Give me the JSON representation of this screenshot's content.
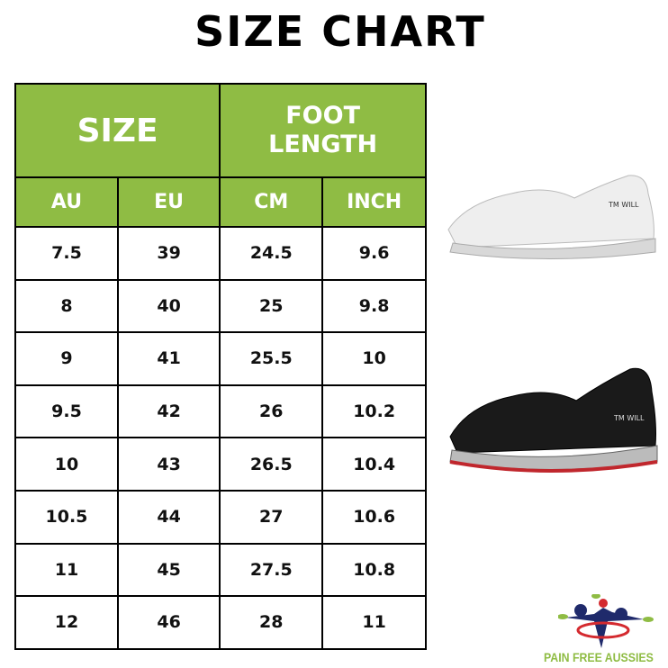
{
  "title": "SIZE CHART",
  "headers": {
    "size": "SIZE",
    "foot_length_1": "FOOT",
    "foot_length_2": "LENGTH",
    "au": "AU",
    "eu": "EU",
    "cm": "CM",
    "inch": "INCH"
  },
  "rows": [
    [
      "7.5",
      "39",
      "24.5",
      "9.6"
    ],
    [
      "8",
      "40",
      "25",
      "9.8"
    ],
    [
      "9",
      "41",
      "25.5",
      "10"
    ],
    [
      "9.5",
      "42",
      "26",
      "10.2"
    ],
    [
      "10",
      "43",
      "26.5",
      "10.4"
    ],
    [
      "10.5",
      "44",
      "27",
      "10.6"
    ],
    [
      "11",
      "45",
      "27.5",
      "10.8"
    ],
    [
      "12",
      "46",
      "28",
      "11"
    ]
  ],
  "shoe_label": "TM WILL",
  "logo": "PAIN FREE AUSSIES",
  "colors": {
    "header_green": "#8fbc44",
    "border": "#000000"
  }
}
